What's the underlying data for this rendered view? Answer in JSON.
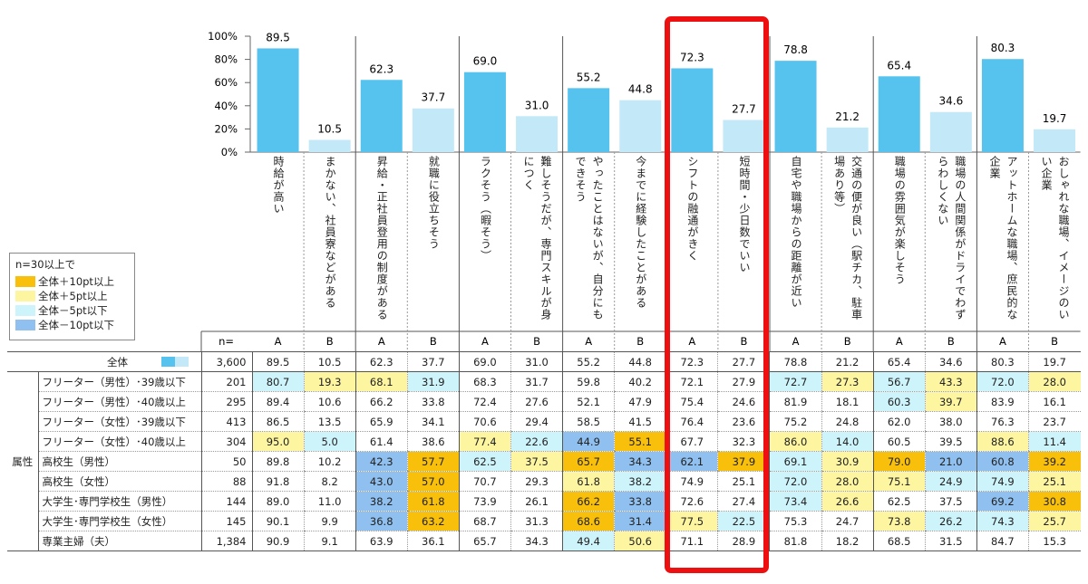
{
  "chart_data": {
    "type": "bar",
    "y_ticks": [
      "100%",
      "80%",
      "60%",
      "40%",
      "20%",
      "0%"
    ],
    "ylim": [
      0,
      100
    ],
    "series": [
      {
        "name": "A",
        "color": "#56c3ee"
      },
      {
        "name": "B",
        "color": "#c3e8f8"
      }
    ],
    "pairs": [
      {
        "a_label": "時給が高い",
        "b_label": "まかない、社員寮などがある",
        "a": 89.5,
        "b": 10.5
      },
      {
        "a_label": "昇給・正社員登用の制度がある",
        "b_label": "就職に役立ちそう",
        "a": 62.3,
        "b": 37.7
      },
      {
        "a_label": "ラクそう（暇そう）",
        "b_label": "難しそうだが、専門スキルが身につく",
        "a": 69.0,
        "b": 31.0
      },
      {
        "a_label": "やったことはないが、自分にもできそう",
        "b_label": "今までに経験したことがある",
        "a": 55.2,
        "b": 44.8
      },
      {
        "a_label": "シフトの融通がきく",
        "b_label": "短時間・少日数でいい",
        "a": 72.3,
        "b": 27.7
      },
      {
        "a_label": "自宅や職場からの距離が近い",
        "b_label": "交通の便が良い（駅チカ、駐車場あり等）",
        "a": 78.8,
        "b": 21.2
      },
      {
        "a_label": "職場の雰囲気が楽しそう",
        "b_label": "職場の人間関係がドライでわずらわしくない",
        "a": 65.4,
        "b": 34.6
      },
      {
        "a_label": "アットホームな職場、庶民的な企業",
        "b_label": "おしゃれな職場、イメージのいい企業",
        "a": 80.3,
        "b": 19.7
      }
    ]
  },
  "table": {
    "n_header": "n=",
    "ab_headers": [
      "A",
      "B",
      "A",
      "B",
      "A",
      "B",
      "A",
      "B",
      "A",
      "B",
      "A",
      "B",
      "A",
      "B",
      "A",
      "B"
    ],
    "total": {
      "label": "全体",
      "n": "3,600",
      "values": [
        "89.5",
        "10.5",
        "62.3",
        "37.7",
        "69.0",
        "31.0",
        "55.2",
        "44.8",
        "72.3",
        "27.7",
        "78.8",
        "21.2",
        "65.4",
        "34.6",
        "80.3",
        "19.7"
      ]
    },
    "attr_label": "属性",
    "rows": [
      {
        "label": "フリーター（男性）･39歳以下",
        "n": "201",
        "values": [
          "80.7",
          "19.3",
          "68.1",
          "31.9",
          "68.3",
          "31.7",
          "59.8",
          "40.2",
          "72.1",
          "27.9",
          "72.7",
          "27.3",
          "56.7",
          "43.3",
          "72.0",
          "28.0"
        ],
        "colors": [
          "b5",
          "y5",
          "y5",
          "b5",
          "",
          "",
          "",
          "",
          "",
          "",
          "b5",
          "y5",
          "b5",
          "y5",
          "b5",
          "y5"
        ]
      },
      {
        "label": "フリーター（男性）･40歳以上",
        "n": "295",
        "values": [
          "89.4",
          "10.6",
          "66.2",
          "33.8",
          "72.4",
          "27.6",
          "52.1",
          "47.9",
          "75.4",
          "24.6",
          "81.9",
          "18.1",
          "60.3",
          "39.7",
          "83.9",
          "16.1"
        ],
        "colors": [
          "",
          "",
          "",
          "",
          "",
          "",
          "",
          "",
          "",
          "",
          "",
          "",
          "b5",
          "y5",
          "",
          ""
        ]
      },
      {
        "label": "フリーター（女性）･39歳以下",
        "n": "413",
        "values": [
          "86.5",
          "13.5",
          "65.9",
          "34.1",
          "70.6",
          "29.4",
          "58.5",
          "41.5",
          "76.4",
          "23.6",
          "75.2",
          "24.8",
          "62.0",
          "38.0",
          "76.3",
          "23.7"
        ],
        "colors": [
          "",
          "",
          "",
          "",
          "",
          "",
          "",
          "",
          "",
          "",
          "",
          "",
          "",
          "",
          "",
          ""
        ]
      },
      {
        "label": "フリーター（女性）･40歳以上",
        "n": "304",
        "values": [
          "95.0",
          "5.0",
          "61.4",
          "38.6",
          "77.4",
          "22.6",
          "44.9",
          "55.1",
          "67.7",
          "32.3",
          "86.0",
          "14.0",
          "60.5",
          "39.5",
          "88.6",
          "11.4"
        ],
        "colors": [
          "y5",
          "b5",
          "",
          "",
          "y5",
          "b5",
          "b10",
          "y10",
          "",
          "",
          "y5",
          "b5",
          "",
          "",
          "y5",
          "b5"
        ]
      },
      {
        "label": "高校生（男性）",
        "n": "50",
        "values": [
          "89.8",
          "10.2",
          "42.3",
          "57.7",
          "62.5",
          "37.5",
          "65.7",
          "34.3",
          "62.1",
          "37.9",
          "69.1",
          "30.9",
          "79.0",
          "21.0",
          "60.8",
          "39.2"
        ],
        "colors": [
          "",
          "",
          "b10",
          "y10",
          "b5",
          "y5",
          "y10",
          "b10",
          "b10",
          "y10",
          "b5",
          "y5",
          "y10",
          "b10",
          "b10",
          "y10"
        ]
      },
      {
        "label": "高校生（女性）",
        "n": "88",
        "values": [
          "91.8",
          "8.2",
          "43.0",
          "57.0",
          "70.7",
          "29.3",
          "61.8",
          "38.2",
          "74.9",
          "25.1",
          "72.0",
          "28.0",
          "75.1",
          "24.9",
          "74.9",
          "25.1"
        ],
        "colors": [
          "",
          "",
          "b10",
          "y10",
          "",
          "",
          "y5",
          "b5",
          "",
          "",
          "b5",
          "y5",
          "y5",
          "b5",
          "b5",
          "y5"
        ]
      },
      {
        "label": "大学生･専門学校生（男性）",
        "n": "144",
        "values": [
          "89.0",
          "11.0",
          "38.2",
          "61.8",
          "73.9",
          "26.1",
          "66.2",
          "33.8",
          "72.6",
          "27.4",
          "73.4",
          "26.6",
          "62.5",
          "37.5",
          "69.2",
          "30.8"
        ],
        "colors": [
          "",
          "",
          "b10",
          "y10",
          "",
          "",
          "y10",
          "b10",
          "",
          "",
          "b5",
          "y5",
          "",
          "",
          "b10",
          "y10"
        ]
      },
      {
        "label": "大学生･専門学校生（女性）",
        "n": "145",
        "values": [
          "90.1",
          "9.9",
          "36.8",
          "63.2",
          "68.7",
          "31.3",
          "68.6",
          "31.4",
          "77.5",
          "22.5",
          "75.3",
          "24.7",
          "73.8",
          "26.2",
          "74.3",
          "25.7"
        ],
        "colors": [
          "",
          "",
          "b10",
          "y10",
          "",
          "",
          "y10",
          "b10",
          "y5",
          "b5",
          "",
          "",
          "y5",
          "b5",
          "b5",
          "y5"
        ]
      },
      {
        "label": "専業主婦（夫）",
        "n": "1,384",
        "values": [
          "90.9",
          "9.1",
          "63.9",
          "36.1",
          "65.7",
          "34.3",
          "49.4",
          "50.6",
          "71.1",
          "28.9",
          "81.8",
          "18.2",
          "68.5",
          "31.5",
          "84.7",
          "15.3"
        ],
        "colors": [
          "",
          "",
          "",
          "",
          "",
          "",
          "b5",
          "y5",
          "",
          "",
          "",
          "",
          "",
          "",
          "",
          ""
        ]
      }
    ]
  },
  "legend": {
    "title": "n=30以上で",
    "items": [
      {
        "label": "全体＋10pt以上",
        "color": "#f9c00b"
      },
      {
        "label": "全体＋5pt以上",
        "color": "#fdf5a0"
      },
      {
        "label": "全体－5pt以下",
        "color": "#cdf3fb"
      },
      {
        "label": "全体－10pt以下",
        "color": "#8fc0f0"
      }
    ]
  }
}
